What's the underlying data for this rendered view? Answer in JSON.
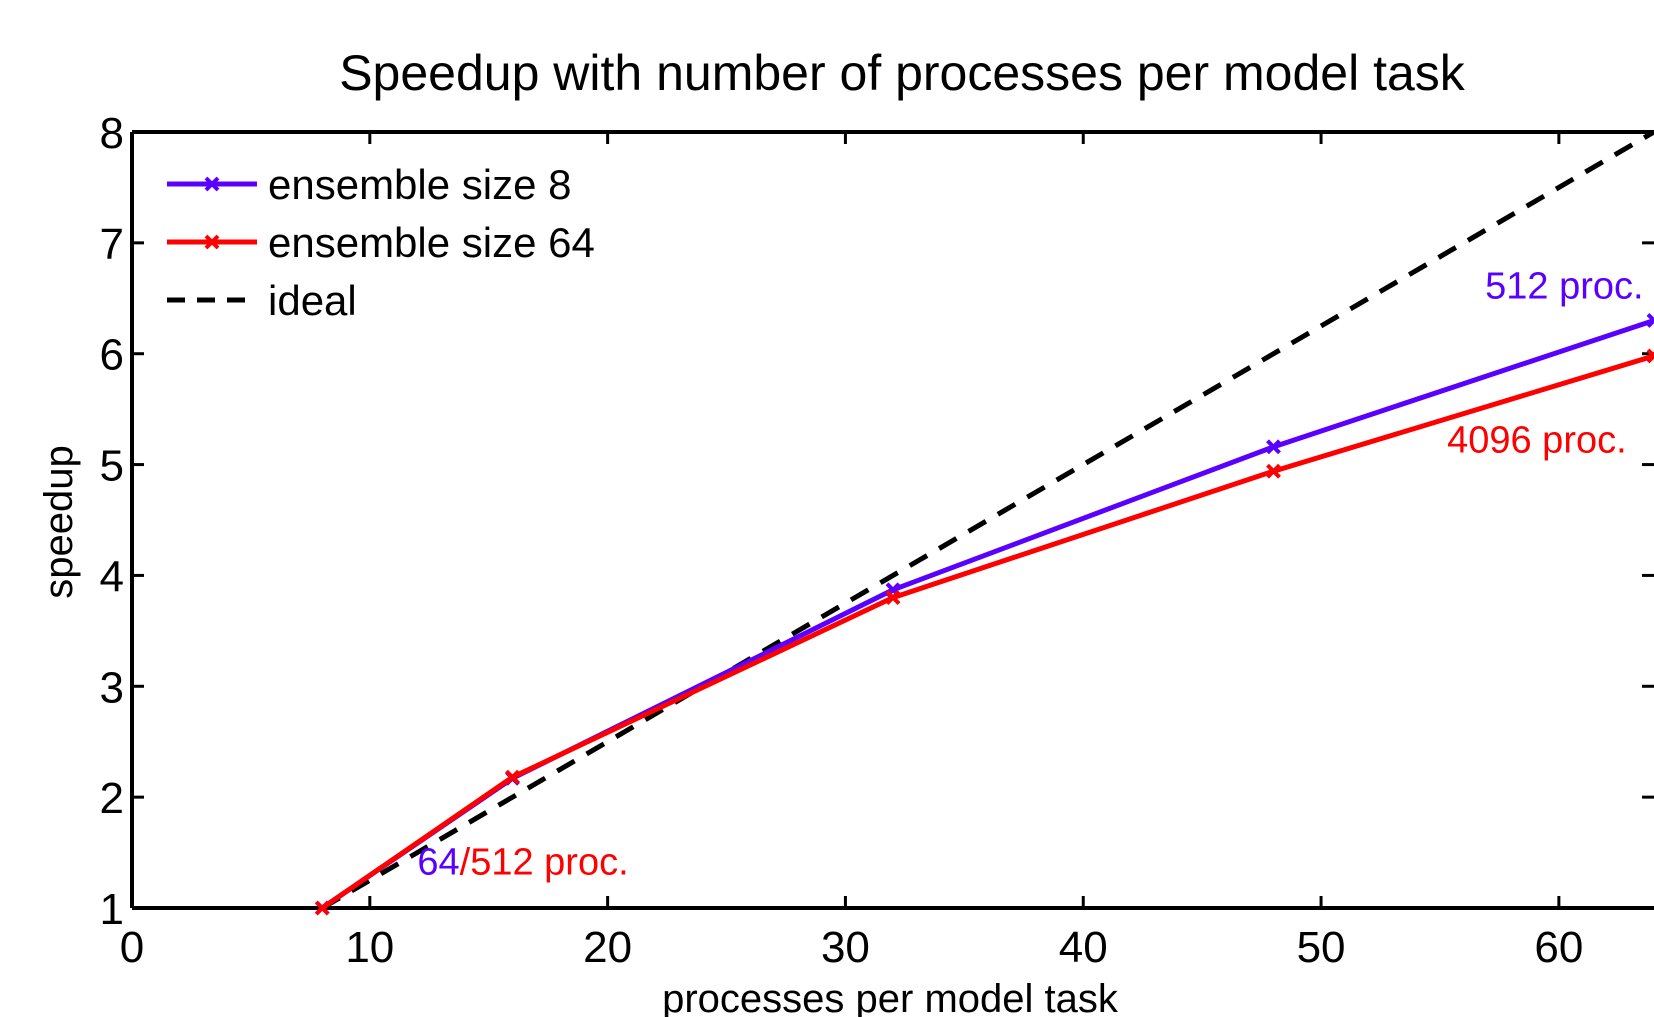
{
  "chart_data": {
    "type": "line",
    "title": "Speedup with number of processes per model task",
    "xlabel": "processes per model task",
    "ylabel": "speedup",
    "xlim": [
      0,
      64
    ],
    "ylim": [
      1,
      8
    ],
    "xticks": [
      0,
      10,
      20,
      30,
      40,
      50,
      60
    ],
    "yticks": [
      1,
      2,
      3,
      4,
      5,
      6,
      7,
      8
    ],
    "grid": false,
    "legend_position": "top-left",
    "series": [
      {
        "name": "ensemble size 8",
        "color": "#5a00ff",
        "style": "solid",
        "marker": "x",
        "x": [
          8,
          16,
          32,
          48,
          64
        ],
        "y": [
          1,
          2.17,
          3.87,
          5.16,
          6.3
        ]
      },
      {
        "name": "ensemble size 64",
        "color": "#ff0000",
        "style": "solid",
        "marker": "x",
        "x": [
          8,
          16,
          32,
          48,
          64
        ],
        "y": [
          1,
          2.18,
          3.8,
          4.94,
          5.98
        ]
      },
      {
        "name": "ideal",
        "color": "#000000",
        "style": "dashed",
        "marker": "none",
        "x": [
          8,
          64
        ],
        "y": [
          1,
          8
        ]
      }
    ],
    "annotations": [
      {
        "parts": [
          {
            "text": "64",
            "color": "#5a00ff"
          },
          {
            "text": "/512 proc.",
            "color": "#ff0000"
          }
        ],
        "x": 12,
        "y": 1.3
      },
      {
        "parts": [
          {
            "text": "512 proc.",
            "color": "#5a00ff"
          }
        ],
        "x": 56.9,
        "y": 6.5
      },
      {
        "parts": [
          {
            "text": "4096 proc.",
            "color": "#ff0000"
          }
        ],
        "x": 55.3,
        "y": 5.11
      }
    ]
  }
}
